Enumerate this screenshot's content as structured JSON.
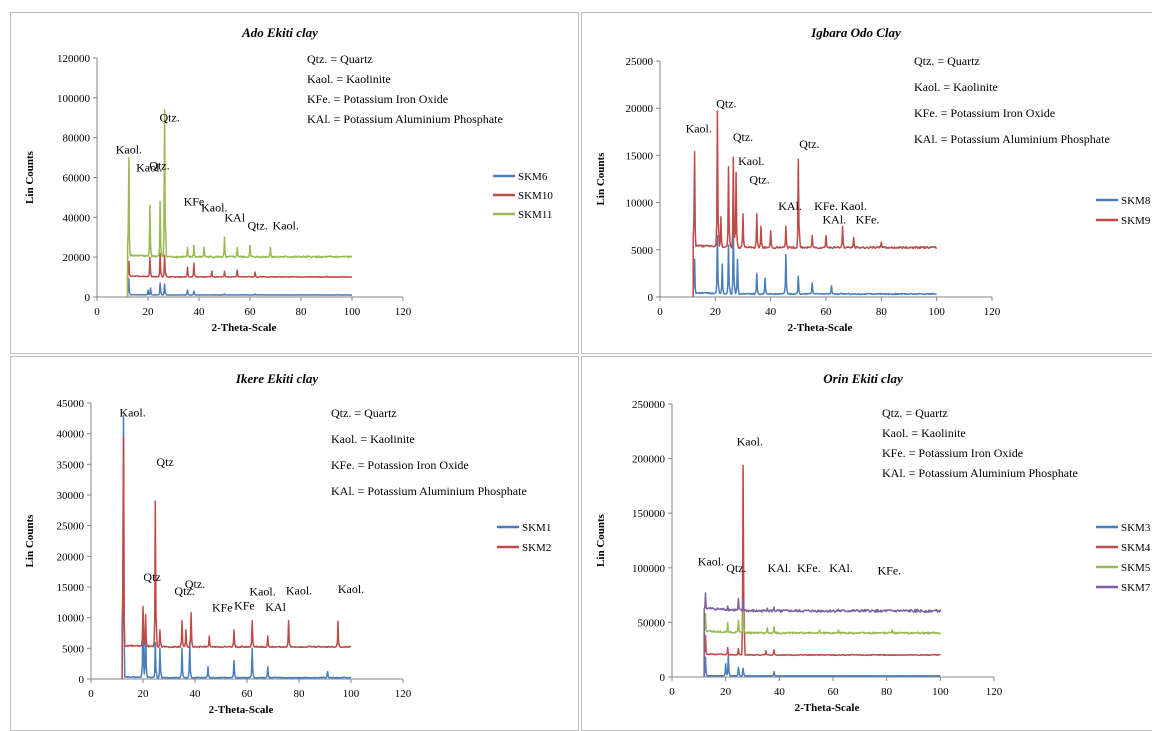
{
  "chart_data": [
    {
      "type": "line",
      "title": "Ado Ekiti clay",
      "xlabel": "2-Theta-Scale",
      "ylabel": "Lin Counts",
      "xlim": [
        0,
        120
      ],
      "ylim": [
        0,
        120000
      ],
      "xticks": [
        0,
        20,
        40,
        60,
        80,
        100,
        120
      ],
      "yticks": [
        0,
        20000,
        40000,
        60000,
        80000,
        100000,
        120000
      ],
      "key": [
        "Qtz. = Quartz",
        "Kaol. = Kaolinite",
        "KFe. = Potassium Iron Oxide",
        "KAl. = Potassium Aluminium  Phosphate"
      ],
      "series": [
        {
          "name": "SKM6",
          "color": "#4a7ebb",
          "base": 1000,
          "peaks": [
            [
              12.4,
              9000
            ],
            [
              20,
              3500
            ],
            [
              21,
              4500
            ],
            [
              24.8,
              7000
            ],
            [
              26.6,
              6500
            ],
            [
              35.5,
              3500
            ],
            [
              38,
              3000
            ],
            [
              50,
              1500
            ],
            [
              62,
              1500
            ]
          ]
        },
        {
          "name": "SKM10",
          "color": "#be4b48",
          "base": 10000,
          "peaks": [
            [
              12.4,
              18000
            ],
            [
              20.8,
              20000
            ],
            [
              24.8,
              22000
            ],
            [
              26.6,
              21000
            ],
            [
              35.5,
              15000
            ],
            [
              38,
              17000
            ],
            [
              45,
              13000
            ],
            [
              50,
              13000
            ],
            [
              55,
              13500
            ],
            [
              62,
              12500
            ]
          ]
        },
        {
          "name": "SKM11",
          "color": "#98b954",
          "base": 20000,
          "peaks": [
            [
              12.4,
              70000
            ],
            [
              20.8,
              46000
            ],
            [
              24.8,
              48000
            ],
            [
              26.6,
              94000
            ],
            [
              35.5,
              25000
            ],
            [
              38,
              26000
            ],
            [
              42,
              25000
            ],
            [
              50,
              30000
            ],
            [
              55,
              25000
            ],
            [
              60,
              26000
            ],
            [
              68,
              25000
            ]
          ]
        }
      ],
      "annotations": [
        {
          "text": "Kaol.",
          "x": 12.5,
          "y": 72000
        },
        {
          "text": "Kaol.",
          "x": 20.5,
          "y": 63000
        },
        {
          "text": "Qtz.",
          "x": 24.5,
          "y": 64000
        },
        {
          "text": "Qtz.",
          "x": 28.5,
          "y": 88000
        },
        {
          "text": "KFe",
          "x": 38,
          "y": 46000
        },
        {
          "text": "Kaol.",
          "x": 46,
          "y": 43000
        },
        {
          "text": "KAl",
          "x": 54,
          "y": 38000
        },
        {
          "text": "Qtz.",
          "x": 63,
          "y": 34000
        },
        {
          "text": "Kaol.",
          "x": 74,
          "y": 34000
        }
      ]
    },
    {
      "type": "line",
      "title": "Igbara Odo Clay",
      "xlabel": "2-Theta-Scale",
      "ylabel": "Lin Counts",
      "xlim": [
        0,
        120
      ],
      "ylim": [
        0,
        25000
      ],
      "xticks": [
        0,
        20,
        40,
        60,
        80,
        100,
        120
      ],
      "yticks": [
        0,
        5000,
        10000,
        15000,
        20000,
        25000
      ],
      "key": [
        "Qtz.  = Quartz",
        "Kaol. = Kaolinite",
        "KFe. = Potassium Iron Oxide",
        "KAl. = Potassium Aluminium  Phosphate"
      ],
      "series": [
        {
          "name": "SKM8",
          "color": "#4a7ebb",
          "base": 300,
          "peaks": [
            [
              12.4,
              4000
            ],
            [
              20.8,
              6500
            ],
            [
              22.5,
              3500
            ],
            [
              24.8,
              5500
            ],
            [
              26.6,
              7200
            ],
            [
              28,
              4000
            ],
            [
              35,
              2500
            ],
            [
              38,
              2000
            ],
            [
              45.5,
              4500
            ],
            [
              50,
              2200
            ],
            [
              55,
              1500
            ],
            [
              62,
              1200
            ]
          ]
        },
        {
          "name": "SKM9",
          "color": "#be4b48",
          "base": 5200,
          "peaks": [
            [
              12.4,
              15400
            ],
            [
              20.8,
              19700
            ],
            [
              22,
              8500
            ],
            [
              24.8,
              13800
            ],
            [
              26.6,
              14800
            ],
            [
              27.5,
              13200
            ],
            [
              30,
              8800
            ],
            [
              35,
              8800
            ],
            [
              36.5,
              7500
            ],
            [
              40,
              7000
            ],
            [
              45.5,
              7500
            ],
            [
              50.1,
              14600
            ],
            [
              55,
              6500
            ],
            [
              60,
              6500
            ],
            [
              66,
              7500
            ],
            [
              70,
              6300
            ],
            [
              80,
              5800
            ]
          ]
        }
      ],
      "annotations": [
        {
          "text": "Kaol.",
          "x": 14,
          "y": 17400
        },
        {
          "text": "Qtz.",
          "x": 24,
          "y": 20100
        },
        {
          "text": "Qtz.",
          "x": 30,
          "y": 16500
        },
        {
          "text": "Kaol.",
          "x": 33,
          "y": 14000
        },
        {
          "text": "Qtz.",
          "x": 36,
          "y": 12000
        },
        {
          "text": "KAl.",
          "x": 47,
          "y": 9200
        },
        {
          "text": "Qtz.",
          "x": 54,
          "y": 15800
        },
        {
          "text": "KFe.",
          "x": 60,
          "y": 9200
        },
        {
          "text": "Kaol.",
          "x": 70,
          "y": 9200
        },
        {
          "text": "KAl.",
          "x": 63,
          "y": 7800
        },
        {
          "text": "KFe.",
          "x": 75,
          "y": 7800
        }
      ]
    },
    {
      "type": "line",
      "title": "Ikere Ekiti clay",
      "xlabel": "2-Theta-Scale",
      "ylabel": "Lin Counts",
      "xlim": [
        0,
        120
      ],
      "ylim": [
        0,
        45000
      ],
      "xticks": [
        0,
        20,
        40,
        60,
        80,
        100,
        120
      ],
      "yticks": [
        0,
        5000,
        10000,
        15000,
        20000,
        25000,
        30000,
        35000,
        40000,
        45000
      ],
      "key": [
        "Qtz. = Quartz",
        "Kaol. = Kaolinite",
        "KFe. = Potassion Iron Oxide",
        "KAl. = Potassium Aluminium  Phosphate"
      ],
      "series": [
        {
          "name": "SKM1",
          "color": "#4a7ebb",
          "base": 200,
          "peaks": [
            [
              12.4,
              43000
            ],
            [
              20,
              11000
            ],
            [
              21,
              9000
            ],
            [
              24.8,
              6000
            ],
            [
              26.6,
              5000
            ],
            [
              35,
              5000
            ],
            [
              38,
              6000
            ],
            [
              45,
              2000
            ],
            [
              55,
              3000
            ],
            [
              62,
              5000
            ],
            [
              68,
              2000
            ],
            [
              91,
              1200
            ]
          ]
        },
        {
          "name": "SKM2",
          "color": "#be4b48",
          "base": 5200,
          "peaks": [
            [
              12.4,
              39500
            ],
            [
              20,
              11800
            ],
            [
              21,
              10500
            ],
            [
              24.8,
              29000
            ],
            [
              26.6,
              8000
            ],
            [
              35,
              9500
            ],
            [
              36.5,
              8000
            ],
            [
              38.5,
              10800
            ],
            [
              45.5,
              7000
            ],
            [
              55,
              8000
            ],
            [
              62,
              9500
            ],
            [
              68,
              7000
            ],
            [
              76,
              9500
            ],
            [
              95,
              9400
            ]
          ]
        }
      ],
      "annotations": [
        {
          "text": "Kaol.",
          "x": 16,
          "y": 42800
        },
        {
          "text": "Qtz",
          "x": 28.5,
          "y": 34700
        },
        {
          "text": "Qtz",
          "x": 23.5,
          "y": 16000
        },
        {
          "text": "Qtz.",
          "x": 36,
          "y": 13700
        },
        {
          "text": "Qtz.",
          "x": 40,
          "y": 14800
        },
        {
          "text": "KFe",
          "x": 50.5,
          "y": 11000
        },
        {
          "text": "KFe",
          "x": 59,
          "y": 11300
        },
        {
          "text": "Kaol.",
          "x": 66,
          "y": 13600
        },
        {
          "text": "KAl",
          "x": 71,
          "y": 11100
        },
        {
          "text": "Kaol.",
          "x": 80,
          "y": 13800
        },
        {
          "text": "Kaol.",
          "x": 100,
          "y": 14000
        }
      ]
    },
    {
      "type": "line",
      "title": "Orin Ekiti clay",
      "xlabel": "2-Theta-Scale",
      "ylabel": "Lin Counts",
      "xlim": [
        0,
        120
      ],
      "ylim": [
        0,
        250000
      ],
      "xticks": [
        0,
        20,
        40,
        60,
        80,
        100,
        120
      ],
      "yticks": [
        0,
        50000,
        100000,
        150000,
        200000,
        250000
      ],
      "key": [
        "Qtz. = Quartz",
        "Kaol. = Kaolinite",
        "KFe. = Potassium Iron Oxide",
        "KAl.  = Potassium Aluminium  Phosphate"
      ],
      "series": [
        {
          "name": "SKM3",
          "color": "#4a7ebb",
          "base": 1000,
          "peaks": [
            [
              12.4,
              18000
            ],
            [
              20,
              12000
            ],
            [
              21,
              20000
            ],
            [
              24.8,
              9000
            ],
            [
              26.6,
              8000
            ],
            [
              38,
              5000
            ]
          ]
        },
        {
          "name": "SKM4",
          "color": "#be4b48",
          "base": 20000,
          "peaks": [
            [
              12.4,
              38000
            ],
            [
              20.8,
              27000
            ],
            [
              24.8,
              26000
            ],
            [
              26.6,
              194000
            ],
            [
              35,
              24000
            ],
            [
              38,
              25000
            ]
          ]
        },
        {
          "name": "SKM5",
          "color": "#98b954",
          "base": 40000,
          "peaks": [
            [
              12.4,
              58000
            ],
            [
              20.8,
              50000
            ],
            [
              24.8,
              52000
            ],
            [
              26.6,
              60000
            ],
            [
              35.5,
              45000
            ],
            [
              38,
              46000
            ],
            [
              55,
              43000
            ],
            [
              62,
              43000
            ],
            [
              82,
              43000
            ]
          ]
        },
        {
          "name": "SKM7",
          "color": "#7d60a0",
          "base": 60000,
          "peaks": [
            [
              12.4,
              77000
            ],
            [
              20.8,
              65000
            ],
            [
              24.8,
              72000
            ],
            [
              26.6,
              70000
            ],
            [
              35.5,
              63000
            ],
            [
              38,
              64000
            ],
            [
              62,
              62000
            ]
          ]
        }
      ],
      "annotations": [
        {
          "text": "Kaol.",
          "x": 14.5,
          "y": 102000
        },
        {
          "text": "Qtz.",
          "x": 24,
          "y": 96000
        },
        {
          "text": "Kaol.",
          "x": 29,
          "y": 212000
        },
        {
          "text": "KAl.",
          "x": 40,
          "y": 96000
        },
        {
          "text": "KFe.",
          "x": 51,
          "y": 96000
        },
        {
          "text": "KAl.",
          "x": 63,
          "y": 96000
        },
        {
          "text": "KFe.",
          "x": 81,
          "y": 94000
        }
      ]
    }
  ]
}
